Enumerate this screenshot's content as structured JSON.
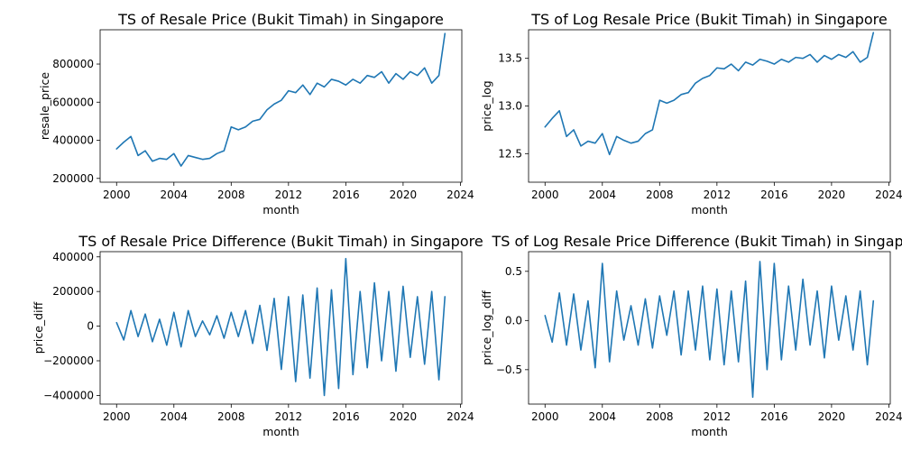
{
  "chart_data": [
    {
      "type": "line",
      "title": "TS of Resale Price (Bukit Timah) in Singapore",
      "xlabel": "month",
      "ylabel": "resale_price",
      "xlim": [
        1998.85,
        2024.1
      ],
      "ylim": [
        180000,
        980000
      ],
      "x_ticks": [
        2000,
        2004,
        2008,
        2012,
        2016,
        2020,
        2024
      ],
      "x_tick_labels": [
        "2000",
        "2004",
        "2008",
        "2012",
        "2016",
        "2020",
        "2024"
      ],
      "y_ticks": [
        200000,
        400000,
        600000,
        800000
      ],
      "y_tick_labels": [
        "200000",
        "400000",
        "600000",
        "800000"
      ],
      "color": "#1f77b4",
      "series": [
        {
          "x": [
            2000.0,
            2000.5,
            2001.0,
            2001.5,
            2002.0,
            2002.5,
            2003.0,
            2003.5,
            2004.0,
            2004.5,
            2005.0,
            2005.5,
            2006.0,
            2006.5,
            2007.0,
            2007.5,
            2008.0,
            2008.5,
            2009.0,
            2009.5,
            2010.0,
            2010.5,
            2011.0,
            2011.5,
            2012.0,
            2012.5,
            2013.0,
            2013.5,
            2014.0,
            2014.5,
            2015.0,
            2015.5,
            2016.0,
            2016.5,
            2017.0,
            2017.5,
            2018.0,
            2018.5,
            2019.0,
            2019.5,
            2020.0,
            2020.5,
            2021.0,
            2021.5,
            2022.0,
            2022.5,
            2022.92
          ],
          "values": [
            355000,
            390000,
            420000,
            320000,
            345000,
            290000,
            305000,
            300000,
            330000,
            265000,
            320000,
            310000,
            300000,
            305000,
            330000,
            345000,
            470000,
            455000,
            470000,
            500000,
            510000,
            560000,
            590000,
            610000,
            660000,
            650000,
            690000,
            640000,
            700000,
            680000,
            720000,
            710000,
            690000,
            720000,
            700000,
            740000,
            730000,
            760000,
            700000,
            750000,
            720000,
            760000,
            740000,
            780000,
            700000,
            740000,
            960000
          ]
        }
      ]
    },
    {
      "type": "line",
      "title": "TS of Log Resale Price (Bukit Timah) in Singapore",
      "xlabel": "month",
      "ylabel": "price_log",
      "xlim": [
        1998.85,
        2024.1
      ],
      "ylim": [
        12.2,
        13.8
      ],
      "x_ticks": [
        2000,
        2004,
        2008,
        2012,
        2016,
        2020,
        2024
      ],
      "x_tick_labels": [
        "2000",
        "2004",
        "2008",
        "2012",
        "2016",
        "2020",
        "2024"
      ],
      "y_ticks": [
        12.5,
        13.0,
        13.5
      ],
      "y_tick_labels": [
        "12.5",
        "13.0",
        "13.5"
      ],
      "color": "#1f77b4",
      "series": [
        {
          "x": [
            2000.0,
            2000.5,
            2001.0,
            2001.5,
            2002.0,
            2002.5,
            2003.0,
            2003.5,
            2004.0,
            2004.5,
            2005.0,
            2005.5,
            2006.0,
            2006.5,
            2007.0,
            2007.5,
            2008.0,
            2008.5,
            2009.0,
            2009.5,
            2010.0,
            2010.5,
            2011.0,
            2011.5,
            2012.0,
            2012.5,
            2013.0,
            2013.5,
            2014.0,
            2014.5,
            2015.0,
            2015.5,
            2016.0,
            2016.5,
            2017.0,
            2017.5,
            2018.0,
            2018.5,
            2019.0,
            2019.5,
            2020.0,
            2020.5,
            2021.0,
            2021.5,
            2022.0,
            2022.5,
            2022.92
          ],
          "values": [
            12.78,
            12.87,
            12.95,
            12.68,
            12.75,
            12.58,
            12.63,
            12.61,
            12.71,
            12.49,
            12.68,
            12.64,
            12.61,
            12.63,
            12.71,
            12.75,
            13.06,
            13.03,
            13.06,
            13.12,
            13.14,
            13.24,
            13.29,
            13.32,
            13.4,
            13.39,
            13.44,
            13.37,
            13.46,
            13.43,
            13.49,
            13.47,
            13.44,
            13.49,
            13.46,
            13.51,
            13.5,
            13.54,
            13.46,
            13.53,
            13.49,
            13.54,
            13.51,
            13.57,
            13.46,
            13.51,
            13.77
          ]
        }
      ]
    },
    {
      "type": "line",
      "title": "TS of Resale Price Difference (Bukit Timah) in Singapore",
      "xlabel": "month",
      "ylabel": "price_diff",
      "xlim": [
        1998.85,
        2024.1
      ],
      "ylim": [
        -450000,
        430000
      ],
      "x_ticks": [
        2000,
        2004,
        2008,
        2012,
        2016,
        2020,
        2024
      ],
      "x_tick_labels": [
        "2000",
        "2004",
        "2008",
        "2012",
        "2016",
        "2020",
        "2024"
      ],
      "y_ticks": [
        -400000,
        -200000,
        0,
        200000,
        400000
      ],
      "y_tick_labels": [
        "−400000",
        "−200000",
        "0",
        "200000",
        "400000"
      ],
      "color": "#1f77b4",
      "series": [
        {
          "x": [
            2000.0,
            2000.5,
            2001.0,
            2001.5,
            2002.0,
            2002.5,
            2003.0,
            2003.5,
            2004.0,
            2004.5,
            2005.0,
            2005.5,
            2006.0,
            2006.5,
            2007.0,
            2007.5,
            2008.0,
            2008.5,
            2009.0,
            2009.5,
            2010.0,
            2010.5,
            2011.0,
            2011.5,
            2012.0,
            2012.5,
            2013.0,
            2013.5,
            2014.0,
            2014.5,
            2015.0,
            2015.5,
            2016.0,
            2016.5,
            2017.0,
            2017.5,
            2018.0,
            2018.5,
            2019.0,
            2019.5,
            2020.0,
            2020.5,
            2021.0,
            2021.5,
            2022.0,
            2022.5,
            2022.92
          ],
          "values": [
            20000,
            -80000,
            90000,
            -60000,
            70000,
            -90000,
            40000,
            -110000,
            80000,
            -120000,
            90000,
            -60000,
            30000,
            -50000,
            60000,
            -70000,
            80000,
            -60000,
            90000,
            -100000,
            120000,
            -140000,
            160000,
            -250000,
            170000,
            -320000,
            180000,
            -300000,
            220000,
            -400000,
            210000,
            -360000,
            390000,
            -280000,
            200000,
            -240000,
            250000,
            -200000,
            200000,
            -260000,
            230000,
            -180000,
            170000,
            -220000,
            200000,
            -310000,
            170000
          ]
        }
      ]
    },
    {
      "type": "line",
      "title": "TS of Log Resale Price Difference (Bukit Timah) in Singapore",
      "xlabel": "month",
      "ylabel": "price_log_diff",
      "xlim": [
        1998.85,
        2024.1
      ],
      "ylim": [
        -0.85,
        0.7
      ],
      "x_ticks": [
        2000,
        2004,
        2008,
        2012,
        2016,
        2020,
        2024
      ],
      "x_tick_labels": [
        "2000",
        "2004",
        "2008",
        "2012",
        "2016",
        "2020",
        "2024"
      ],
      "y_ticks": [
        -0.5,
        0.0,
        0.5
      ],
      "y_tick_labels": [
        "−0.5",
        "0.0",
        "0.5"
      ],
      "color": "#1f77b4",
      "series": [
        {
          "x": [
            2000.0,
            2000.5,
            2001.0,
            2001.5,
            2002.0,
            2002.5,
            2003.0,
            2003.5,
            2004.0,
            2004.5,
            2005.0,
            2005.5,
            2006.0,
            2006.5,
            2007.0,
            2007.5,
            2008.0,
            2008.5,
            2009.0,
            2009.5,
            2010.0,
            2010.5,
            2011.0,
            2011.5,
            2012.0,
            2012.5,
            2013.0,
            2013.5,
            2014.0,
            2014.5,
            2015.0,
            2015.5,
            2016.0,
            2016.5,
            2017.0,
            2017.5,
            2018.0,
            2018.5,
            2019.0,
            2019.5,
            2020.0,
            2020.5,
            2021.0,
            2021.5,
            2022.0,
            2022.5,
            2022.92
          ],
          "values": [
            0.05,
            -0.22,
            0.28,
            -0.25,
            0.27,
            -0.3,
            0.2,
            -0.48,
            0.58,
            -0.42,
            0.3,
            -0.2,
            0.15,
            -0.25,
            0.22,
            -0.28,
            0.25,
            -0.15,
            0.3,
            -0.35,
            0.3,
            -0.3,
            0.35,
            -0.4,
            0.32,
            -0.45,
            0.3,
            -0.42,
            0.4,
            -0.78,
            0.6,
            -0.5,
            0.58,
            -0.4,
            0.35,
            -0.3,
            0.42,
            -0.25,
            0.3,
            -0.38,
            0.35,
            -0.2,
            0.25,
            -0.3,
            0.3,
            -0.45,
            0.2
          ]
        }
      ]
    }
  ]
}
